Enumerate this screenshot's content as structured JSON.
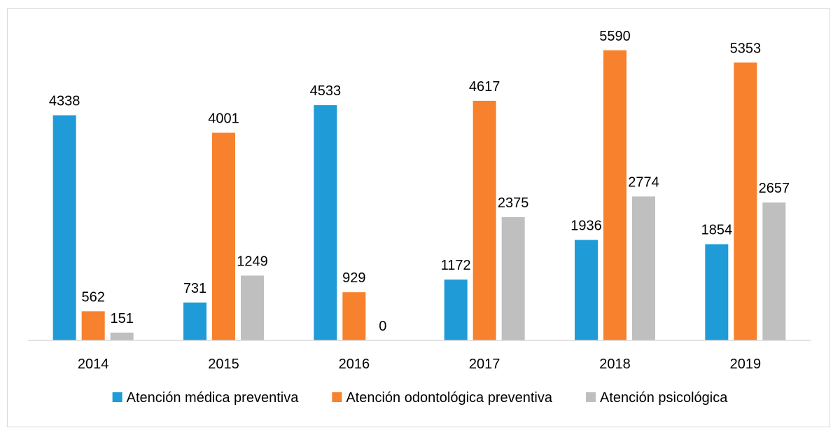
{
  "chart_data": {
    "type": "bar",
    "title": "",
    "xlabel": "",
    "ylabel": "",
    "categories": [
      "2014",
      "2015",
      "2016",
      "2017",
      "2018",
      "2019"
    ],
    "series": [
      {
        "name": "Atención médica preventiva",
        "color": "#1f9bd7",
        "values": [
          4338,
          731,
          4533,
          1172,
          1936,
          1854
        ]
      },
      {
        "name": "Atención odontológica preventiva",
        "color": "#f7812c",
        "values": [
          562,
          4001,
          929,
          4617,
          5590,
          5353
        ]
      },
      {
        "name": "Atención psicológica",
        "color": "#bfbfbf",
        "values": [
          151,
          1249,
          0,
          2375,
          2774,
          2657
        ]
      }
    ],
    "ylim": [
      0,
      6000
    ],
    "grid": false,
    "legend_position": "bottom"
  }
}
